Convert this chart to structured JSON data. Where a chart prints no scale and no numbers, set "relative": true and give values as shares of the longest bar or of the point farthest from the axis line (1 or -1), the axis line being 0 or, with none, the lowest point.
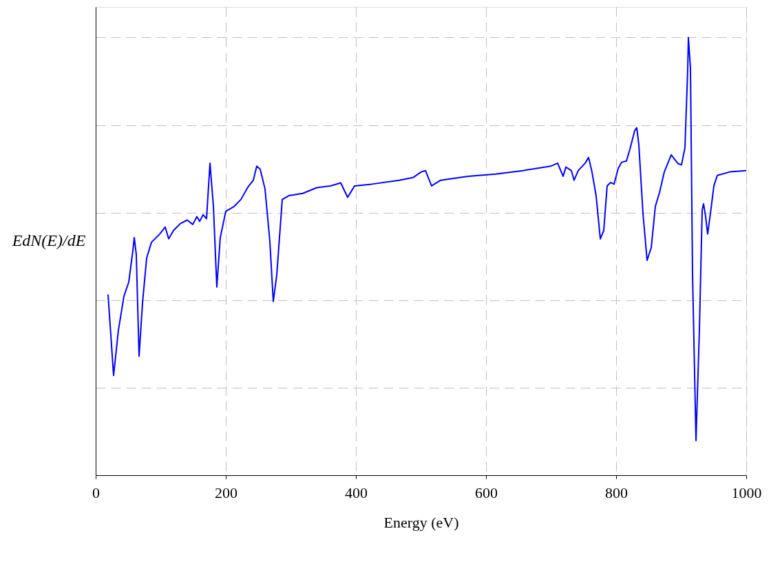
{
  "chart_data": {
    "type": "line",
    "relative": true,
    "xlabel": "Energy (eV)",
    "ylabel": "EdN(E)/dE",
    "xlim": [
      0,
      1000
    ],
    "xticks": [
      0,
      200,
      400,
      600,
      800,
      1000
    ],
    "grid": true,
    "line_style": "solid",
    "x": [
      19.0,
      27.5,
      34.9,
      43.4,
      50.8,
      57.1,
      59.3,
      62.4,
      66.7,
      72.0,
      78.3,
      85.7,
      98.4,
      106.9,
      112.2,
      119.6,
      130.2,
      140.7,
      149.2,
      155.6,
      159.8,
      165.1,
      170.4,
      175.7,
      181.0,
      186.2,
      191.5,
      200.0,
      212.7,
      223.3,
      233.9,
      242.3,
      247.6,
      252.9,
      260.3,
      267.7,
      273.0,
      278.3,
      286.8,
      297.4,
      318.5,
      339.7,
      360.8,
      376.7,
      387.3,
      397.9,
      424.3,
      466.7,
      487.8,
      500.5,
      506.9,
      516.4,
      530.2,
      572.5,
      614.8,
      657.1,
      699.5,
      710.1,
      718.5,
      722.8,
      731.2,
      735.4,
      741.8,
      752.4,
      757.7,
      762.9,
      769.3,
      775.7,
      781.0,
      786.2,
      791.5,
      796.8,
      803.2,
      808.5,
      815.9,
      821.2,
      828.6,
      831.7,
      834.9,
      841.3,
      847.6,
      854.0,
      860.3,
      866.7,
      874.1,
      884.7,
      895.2,
      900.5,
      905.8,
      910.1,
      911.1,
      914.3,
      917.5,
      922.8,
      928.0,
      932.3,
      934.4,
      937.6,
      940.7,
      945.0,
      950.3,
      955.6,
      974.6,
      1000
    ],
    "series": [
      {
        "color": "#0000ff",
        "values": [
          0.413,
          0.228,
          0.331,
          0.409,
          0.441,
          0.512,
          0.543,
          0.504,
          0.272,
          0.394,
          0.496,
          0.532,
          0.551,
          0.567,
          0.54,
          0.559,
          0.575,
          0.583,
          0.573,
          0.591,
          0.58,
          0.595,
          0.586,
          0.713,
          0.614,
          0.43,
          0.543,
          0.603,
          0.614,
          0.63,
          0.658,
          0.674,
          0.706,
          0.699,
          0.654,
          0.535,
          0.397,
          0.457,
          0.63,
          0.639,
          0.644,
          0.657,
          0.661,
          0.668,
          0.635,
          0.661,
          0.665,
          0.674,
          0.68,
          0.693,
          0.696,
          0.661,
          0.674,
          0.683,
          0.688,
          0.696,
          0.706,
          0.713,
          0.683,
          0.704,
          0.696,
          0.674,
          0.696,
          0.713,
          0.726,
          0.693,
          0.638,
          0.54,
          0.559,
          0.661,
          0.669,
          0.665,
          0.701,
          0.715,
          0.718,
          0.745,
          0.787,
          0.794,
          0.756,
          0.598,
          0.491,
          0.52,
          0.614,
          0.646,
          0.693,
          0.732,
          0.712,
          0.709,
          0.748,
          0.929,
          1.0,
          0.929,
          0.457,
          0.079,
          0.331,
          0.606,
          0.62,
          0.591,
          0.551,
          0.598,
          0.661,
          0.685,
          0.693,
          0.696
        ]
      }
    ]
  }
}
